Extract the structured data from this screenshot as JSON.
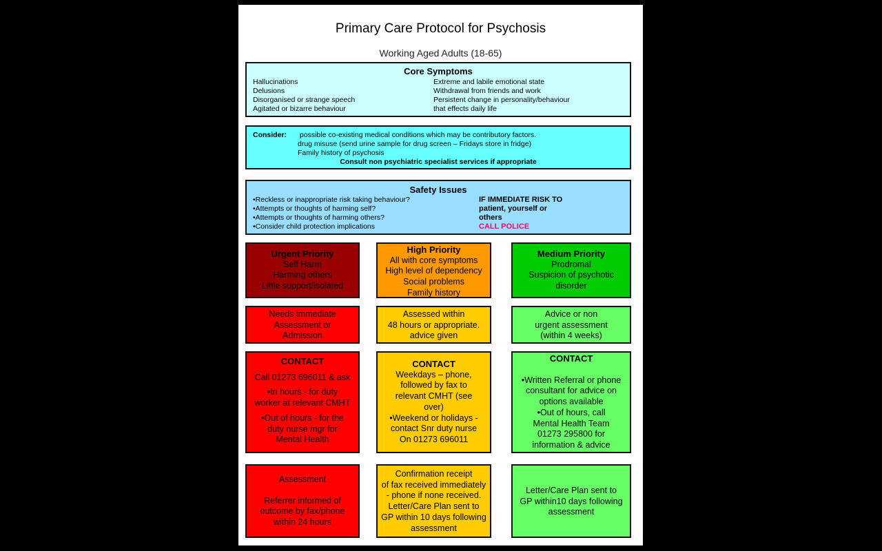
{
  "title": "Primary Care Protocol for Psychosis",
  "subtitle": "Working Aged Adults (18-65)",
  "core": {
    "heading": "Core Symptoms",
    "left": [
      "Hallucinations",
      "Delusions",
      "Disorganised or strange speech",
      "Agitated or bizarre behaviour"
    ],
    "right": [
      "Extreme and labile emotional state",
      "Withdrawal from friends and work",
      "Persistent change in personality/behaviour",
      "that effects daily life"
    ]
  },
  "consider": {
    "label": "Consider:",
    "lines": [
      "possible co-existing medical conditions which may be contributory factors.",
      "drug misuse (send urine sample for drug screen – Fridays store in fridge)",
      "Family history of psychosis"
    ],
    "final": "Consult non psychiatric specialist services if appropriate"
  },
  "safety": {
    "heading": "Safety Issues",
    "items": [
      "•Reckless or inappropriate risk taking behaviour?",
      "•Attempts or thoughts of harming self?",
      "•Attempts or thoughts of harming others?",
      "•Consider child protection implications"
    ],
    "risk": [
      "IF IMMEDIATE RISK TO",
      "patient, yourself or",
      "others"
    ],
    "police": "CALL POLICE"
  },
  "urgent": {
    "priority": {
      "heading": "Urgent Priority",
      "lines": [
        "Self Harm",
        "Harming others",
        "Little support/isolated"
      ]
    },
    "action": [
      "Needs immediate",
      "Assessment or",
      "Admission"
    ],
    "contact": {
      "heading": "CONTACT",
      "lines": [
        "Call 01273 696011 & ask",
        "•In hours -  for duty",
        "worker at relevant CMHT",
        "•Out of hours - for the",
        "duty nurse mgr for",
        "Mental Health"
      ]
    },
    "followup": [
      "Assessment",
      "Referrer informed of",
      "outcome by fax/phone",
      "within 24 hours"
    ]
  },
  "high": {
    "priority": {
      "heading": "High Priority",
      "lines": [
        "All with core symptoms",
        "High level of dependency",
        "Social problems",
        "Family history"
      ]
    },
    "action": [
      "Assessed within",
      "48 hours or appropriate.",
      "advice given"
    ],
    "contact": {
      "heading": "CONTACT",
      "lines": [
        "Weekdays – phone,",
        "followed by fax to",
        "relevant CMHT (see",
        "over)",
        "•Weekend or holidays -",
        "contact Snr duty nurse",
        "On 01273 696011"
      ]
    },
    "followup": [
      "Confirmation receipt",
      "of fax received immediately",
      "- phone if none received.",
      "Letter/Care Plan sent to",
      "GP within 10 days following",
      "assessment"
    ]
  },
  "medium": {
    "priority": {
      "heading": "Medium Priority",
      "lines": [
        "Prodromal",
        "Suspicion of psychotic",
        "disorder"
      ]
    },
    "action": [
      "Advice or non",
      "urgent assessment",
      "(within 4 weeks)"
    ],
    "contact": {
      "heading": "CONTACT",
      "lines": [
        "•Written Referral or phone",
        "consultant for advice on",
        "options available",
        "•Out of hours, call",
        "Mental Health Team",
        "01273 295800 for",
        "information & advice"
      ]
    },
    "followup": [
      "Letter/Care Plan sent to",
      "GP within10 days following",
      "assessment"
    ]
  },
  "colors": {
    "urgent": "#990000",
    "high": "#ff9900",
    "medium": "#00cc00",
    "red": "#ff0000",
    "amber": "#ffcc00",
    "light_green": "#66ff66"
  }
}
